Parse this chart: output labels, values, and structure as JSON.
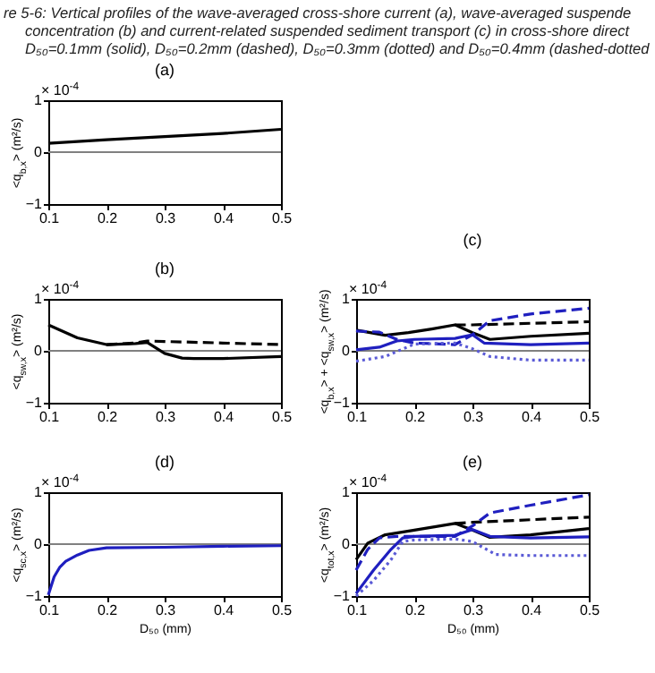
{
  "chart_data": [
    {
      "type": "line",
      "title": "(a)",
      "ylabel": "<q$_{b,x}$> (m²/s)",
      "annotations": [
        "× 10$^{-4}$",
        "re 5-6: Vertical profiles of the wave-averaged cross-shore current (a), wave-averaged suspende",
        "concentration (b) and current-related suspended sediment transport (c) in cross-shore direct",
        "D₅₀=0.1mm (solid), D₅₀=0.2mm (dashed), D₅₀=0.3mm (dotted) and D₅₀=0.4mm (dashed-dotted"
      ],
      "xlim": [
        0.1,
        0.5
      ],
      "xticks": [
        0.1,
        0.2,
        0.3,
        0.4,
        0.5
      ],
      "ylim": [
        -1,
        1
      ],
      "yticks": [
        -1,
        0,
        1
      ],
      "grid": false,
      "ref_lines": [
        {
          "axis": "y",
          "value": 0,
          "color": "#808080"
        }
      ],
      "series": [
        {
          "color": "#000000",
          "line_style": "solid",
          "x": [
            0.1,
            0.2,
            0.3,
            0.4,
            0.5
          ],
          "values": [
            0.17,
            0.24,
            0.3,
            0.36,
            0.44
          ]
        }
      ]
    },
    {
      "type": "line",
      "title": "(b)",
      "ylabel": "<q$_{sw,x}$> (m²/s)",
      "annotations": [
        "× 10$^{-4}$"
      ],
      "xlim": [
        0.1,
        0.5
      ],
      "xticks": [
        0.1,
        0.2,
        0.3,
        0.4,
        0.5
      ],
      "ylim": [
        -1,
        1
      ],
      "yticks": [
        -1,
        0,
        1
      ],
      "grid": false,
      "ref_lines": [
        {
          "axis": "y",
          "value": 0,
          "color": "#808080"
        }
      ],
      "series": [
        {
          "color": "#000000",
          "line_style": "dashed",
          "x": [
            0.2,
            0.25,
            0.27,
            0.3,
            0.4,
            0.5
          ],
          "values": [
            0.12,
            0.15,
            0.19,
            0.18,
            0.15,
            0.12
          ]
        },
        {
          "color": "#000000",
          "line_style": "solid",
          "x": [
            0.1,
            0.15,
            0.2,
            0.25,
            0.27,
            0.3,
            0.33,
            0.35,
            0.4,
            0.5
          ],
          "values": [
            0.5,
            0.25,
            0.12,
            0.14,
            0.16,
            -0.05,
            -0.14,
            -0.15,
            -0.15,
            -0.11
          ]
        }
      ]
    },
    {
      "type": "line",
      "title": "(c)",
      "ylabel": "<q$_{b,x}$> + <q$_{sw,x}$> (m²/s)",
      "annotations": [
        "× 10$^{-4}$"
      ],
      "xlim": [
        0.1,
        0.5
      ],
      "xticks": [
        0.1,
        0.2,
        0.3,
        0.4,
        0.5
      ],
      "ylim": [
        -1,
        1
      ],
      "yticks": [
        -1,
        0,
        1
      ],
      "grid": false,
      "ref_lines": [
        {
          "axis": "y",
          "value": 0,
          "color": "#808080"
        }
      ],
      "series": [
        {
          "color": "#000000",
          "line_style": "dashed",
          "x": [
            0.27,
            0.3,
            0.4,
            0.5
          ],
          "values": [
            0.5,
            0.5,
            0.53,
            0.56
          ]
        },
        {
          "color": "#000000",
          "line_style": "solid",
          "x": [
            0.1,
            0.15,
            0.19,
            0.23,
            0.27,
            0.3,
            0.33,
            0.4,
            0.5
          ],
          "values": [
            0.4,
            0.3,
            0.35,
            0.42,
            0.5,
            0.35,
            0.22,
            0.28,
            0.34
          ]
        },
        {
          "color": "#1f1fbf",
          "line_style": "dashed",
          "x": [
            0.1,
            0.14,
            0.17,
            0.2,
            0.27,
            0.3,
            0.33,
            0.4,
            0.5
          ],
          "values": [
            0.38,
            0.36,
            0.22,
            0.15,
            0.12,
            0.31,
            0.58,
            0.71,
            0.82
          ]
        },
        {
          "color": "#1f1fbf",
          "line_style": "solid",
          "x": [
            0.1,
            0.14,
            0.17,
            0.2,
            0.27,
            0.3,
            0.32,
            0.4,
            0.5
          ],
          "values": [
            0.02,
            0.07,
            0.19,
            0.22,
            0.24,
            0.31,
            0.15,
            0.12,
            0.15
          ]
        },
        {
          "color": "#5a5ad6",
          "line_style": "dotted",
          "x": [
            0.1,
            0.15,
            0.2,
            0.27,
            0.3,
            0.33,
            0.4,
            0.5
          ],
          "values": [
            -0.2,
            -0.11,
            0.13,
            0.15,
            0.04,
            -0.11,
            -0.18,
            -0.18
          ]
        }
      ]
    },
    {
      "type": "line",
      "title": "(d)",
      "xlabel": "D₅₀ (mm)",
      "ylabel": "<q$_{sc,x}$> (m²/s)",
      "annotations": [
        "× 10$^{-4}$"
      ],
      "xlim": [
        0.1,
        0.5
      ],
      "xticks": [
        0.1,
        0.2,
        0.3,
        0.4,
        0.5
      ],
      "ylim": [
        -1,
        1
      ],
      "yticks": [
        -1,
        0,
        1
      ],
      "grid": false,
      "ref_lines": [
        {
          "axis": "y",
          "value": 0,
          "color": "#808080"
        }
      ],
      "series": [
        {
          "color": "#1f1fbf",
          "line_style": "solid",
          "x": [
            0.1,
            0.11,
            0.12,
            0.13,
            0.15,
            0.17,
            0.2,
            0.3,
            0.4,
            0.5
          ],
          "values": [
            -0.98,
            -0.63,
            -0.44,
            -0.33,
            -0.21,
            -0.12,
            -0.07,
            -0.06,
            -0.04,
            -0.03
          ]
        }
      ]
    },
    {
      "type": "line",
      "title": "(e)",
      "xlabel": "D₅₀ (mm)",
      "ylabel": "<q$_{tot,x}$> (m²/s)",
      "annotations": [
        "× 10$^{-4}$"
      ],
      "xlim": [
        0.1,
        0.5
      ],
      "xticks": [
        0.1,
        0.2,
        0.3,
        0.4,
        0.5
      ],
      "ylim": [
        -1,
        1
      ],
      "yticks": [
        -1,
        0,
        1
      ],
      "grid": false,
      "ref_lines": [
        {
          "axis": "y",
          "value": 0,
          "color": "#808080"
        }
      ],
      "series": [
        {
          "color": "#000000",
          "line_style": "dashed",
          "x": [
            0.27,
            0.3,
            0.4,
            0.5
          ],
          "values": [
            0.4,
            0.42,
            0.47,
            0.52
          ]
        },
        {
          "color": "#000000",
          "line_style": "solid",
          "x": [
            0.1,
            0.12,
            0.15,
            0.2,
            0.27,
            0.3,
            0.33,
            0.4,
            0.5
          ],
          "values": [
            -0.3,
            0.02,
            0.18,
            0.27,
            0.4,
            0.27,
            0.13,
            0.18,
            0.3
          ]
        },
        {
          "color": "#1f1fbf",
          "line_style": "dashed",
          "x": [
            0.1,
            0.12,
            0.14,
            0.17,
            0.2,
            0.27,
            0.3,
            0.33,
            0.4,
            0.5
          ],
          "values": [
            -0.5,
            -0.1,
            0.12,
            0.15,
            0.15,
            0.15,
            0.35,
            0.6,
            0.75,
            0.95
          ]
        },
        {
          "color": "#1f1fbf",
          "line_style": "solid",
          "x": [
            0.1,
            0.13,
            0.16,
            0.18,
            0.2,
            0.27,
            0.3,
            0.33,
            0.4,
            0.5
          ],
          "values": [
            -0.95,
            -0.5,
            -0.1,
            0.12,
            0.15,
            0.17,
            0.28,
            0.15,
            0.12,
            0.14
          ]
        },
        {
          "color": "#5a5ad6",
          "line_style": "dotted",
          "x": [
            0.1,
            0.13,
            0.16,
            0.18,
            0.2,
            0.27,
            0.3,
            0.34,
            0.4,
            0.5
          ],
          "values": [
            -1,
            -0.7,
            -0.3,
            0.05,
            0.08,
            0.1,
            0.05,
            -0.2,
            -0.22,
            -0.22
          ]
        }
      ]
    }
  ]
}
